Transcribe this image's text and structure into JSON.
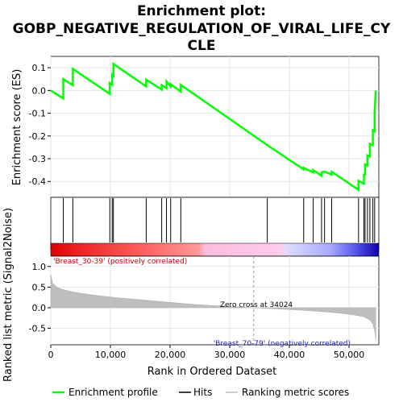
{
  "chart_data": {
    "type": "line",
    "title_lines": [
      "Enrichment plot:",
      "GOBP_NEGATIVE_REGULATION_OF_VIRAL_LIFE_CY",
      "CLE"
    ],
    "es_panel": {
      "ylabel": "Enrichment score (ES)",
      "ylim": [
        -0.47,
        0.15
      ],
      "yticks": [
        0.1,
        0.0,
        -0.1,
        -0.2,
        -0.3,
        -0.4
      ],
      "ytick_labels": [
        "0.1",
        "0.0",
        "-0.1",
        "-0.2",
        "-0.3",
        "-0.4"
      ],
      "series": [
        {
          "name": "Enrichment profile",
          "color": "#00ff00",
          "x": [
            0,
            2100,
            2100,
            3700,
            3700,
            9900,
            9900,
            10300,
            10300,
            10500,
            10500,
            16000,
            16000,
            18600,
            18600,
            19400,
            19400,
            20100,
            20100,
            21800,
            21800,
            36300,
            36300,
            42400,
            42400,
            44000,
            44000,
            45400,
            45400,
            45900,
            45900,
            47100,
            47100,
            51600,
            51600,
            52500,
            52500,
            52700,
            52700,
            53100,
            53100,
            53500,
            53500,
            54000,
            54000,
            54300,
            54300,
            54500
          ],
          "y": [
            0.0,
            -0.035,
            0.05,
            0.023,
            0.095,
            -0.015,
            0.033,
            0.025,
            0.07,
            0.065,
            0.117,
            0.018,
            0.048,
            0.004,
            0.024,
            0.01,
            0.04,
            0.018,
            0.028,
            -0.005,
            0.025,
            -0.24,
            -0.24,
            -0.347,
            -0.34,
            -0.36,
            -0.35,
            -0.375,
            -0.36,
            -0.357,
            -0.357,
            -0.37,
            -0.357,
            -0.437,
            -0.397,
            -0.41,
            -0.37,
            -0.37,
            -0.325,
            -0.33,
            -0.285,
            -0.29,
            -0.235,
            -0.24,
            -0.175,
            -0.18,
            -0.095,
            0.0
          ]
        }
      ]
    },
    "hits": {
      "name": "Hits",
      "x": [
        2100,
        3700,
        9900,
        10300,
        10500,
        16000,
        18600,
        19400,
        20100,
        21800,
        36300,
        42400,
        44000,
        45400,
        45900,
        47100,
        51600,
        52500,
        52700,
        53100,
        53500,
        54000,
        54300
      ]
    },
    "ranked_metric": {
      "name": "Ranking metric scores",
      "ylabel": "Ranked list metric (Signal2Noise)",
      "xlabel": "Rank in Ordered Dataset",
      "ylim": [
        -0.9,
        1.25
      ],
      "yticks": [
        1.0,
        0.5,
        0.0,
        -0.5
      ],
      "ytick_labels": [
        "1.0",
        "0.5",
        "0.0",
        "-0.5"
      ],
      "xlim": [
        0,
        55000
      ],
      "xticks": [
        0,
        10000,
        20000,
        30000,
        40000,
        50000
      ],
      "xtick_labels": [
        "0",
        "10,000",
        "20,000",
        "30,000",
        "40,000",
        "50,000"
      ],
      "profile_x": [
        0,
        300,
        1000,
        2000,
        3500,
        5000,
        8000,
        12000,
        16000,
        20000,
        24000,
        28000,
        32000,
        34024,
        38000,
        42000,
        46000,
        49000,
        51000,
        52500,
        53500,
        54000,
        54300,
        54500
      ],
      "profile_y": [
        0.8,
        0.6,
        0.5,
        0.44,
        0.39,
        0.35,
        0.29,
        0.23,
        0.18,
        0.13,
        0.08,
        0.045,
        0.015,
        0.0,
        -0.03,
        -0.06,
        -0.1,
        -0.14,
        -0.18,
        -0.22,
        -0.3,
        -0.4,
        -0.55,
        -0.8
      ],
      "zero_cross_label": "Zero cross at 34024",
      "zero_cross": 34024,
      "pos_label": "'Breast_30-39' (positively correlated)",
      "neg_label": "'Breast_70-79' (negatively correlated)"
    },
    "legend": [
      {
        "label": "Enrichment profile",
        "color": "#00ff00"
      },
      {
        "label": "Hits",
        "color": "#000000"
      },
      {
        "label": "Ranking metric scores",
        "color": "#bebebe"
      }
    ],
    "legend_placement": "bottom",
    "grid": true
  }
}
